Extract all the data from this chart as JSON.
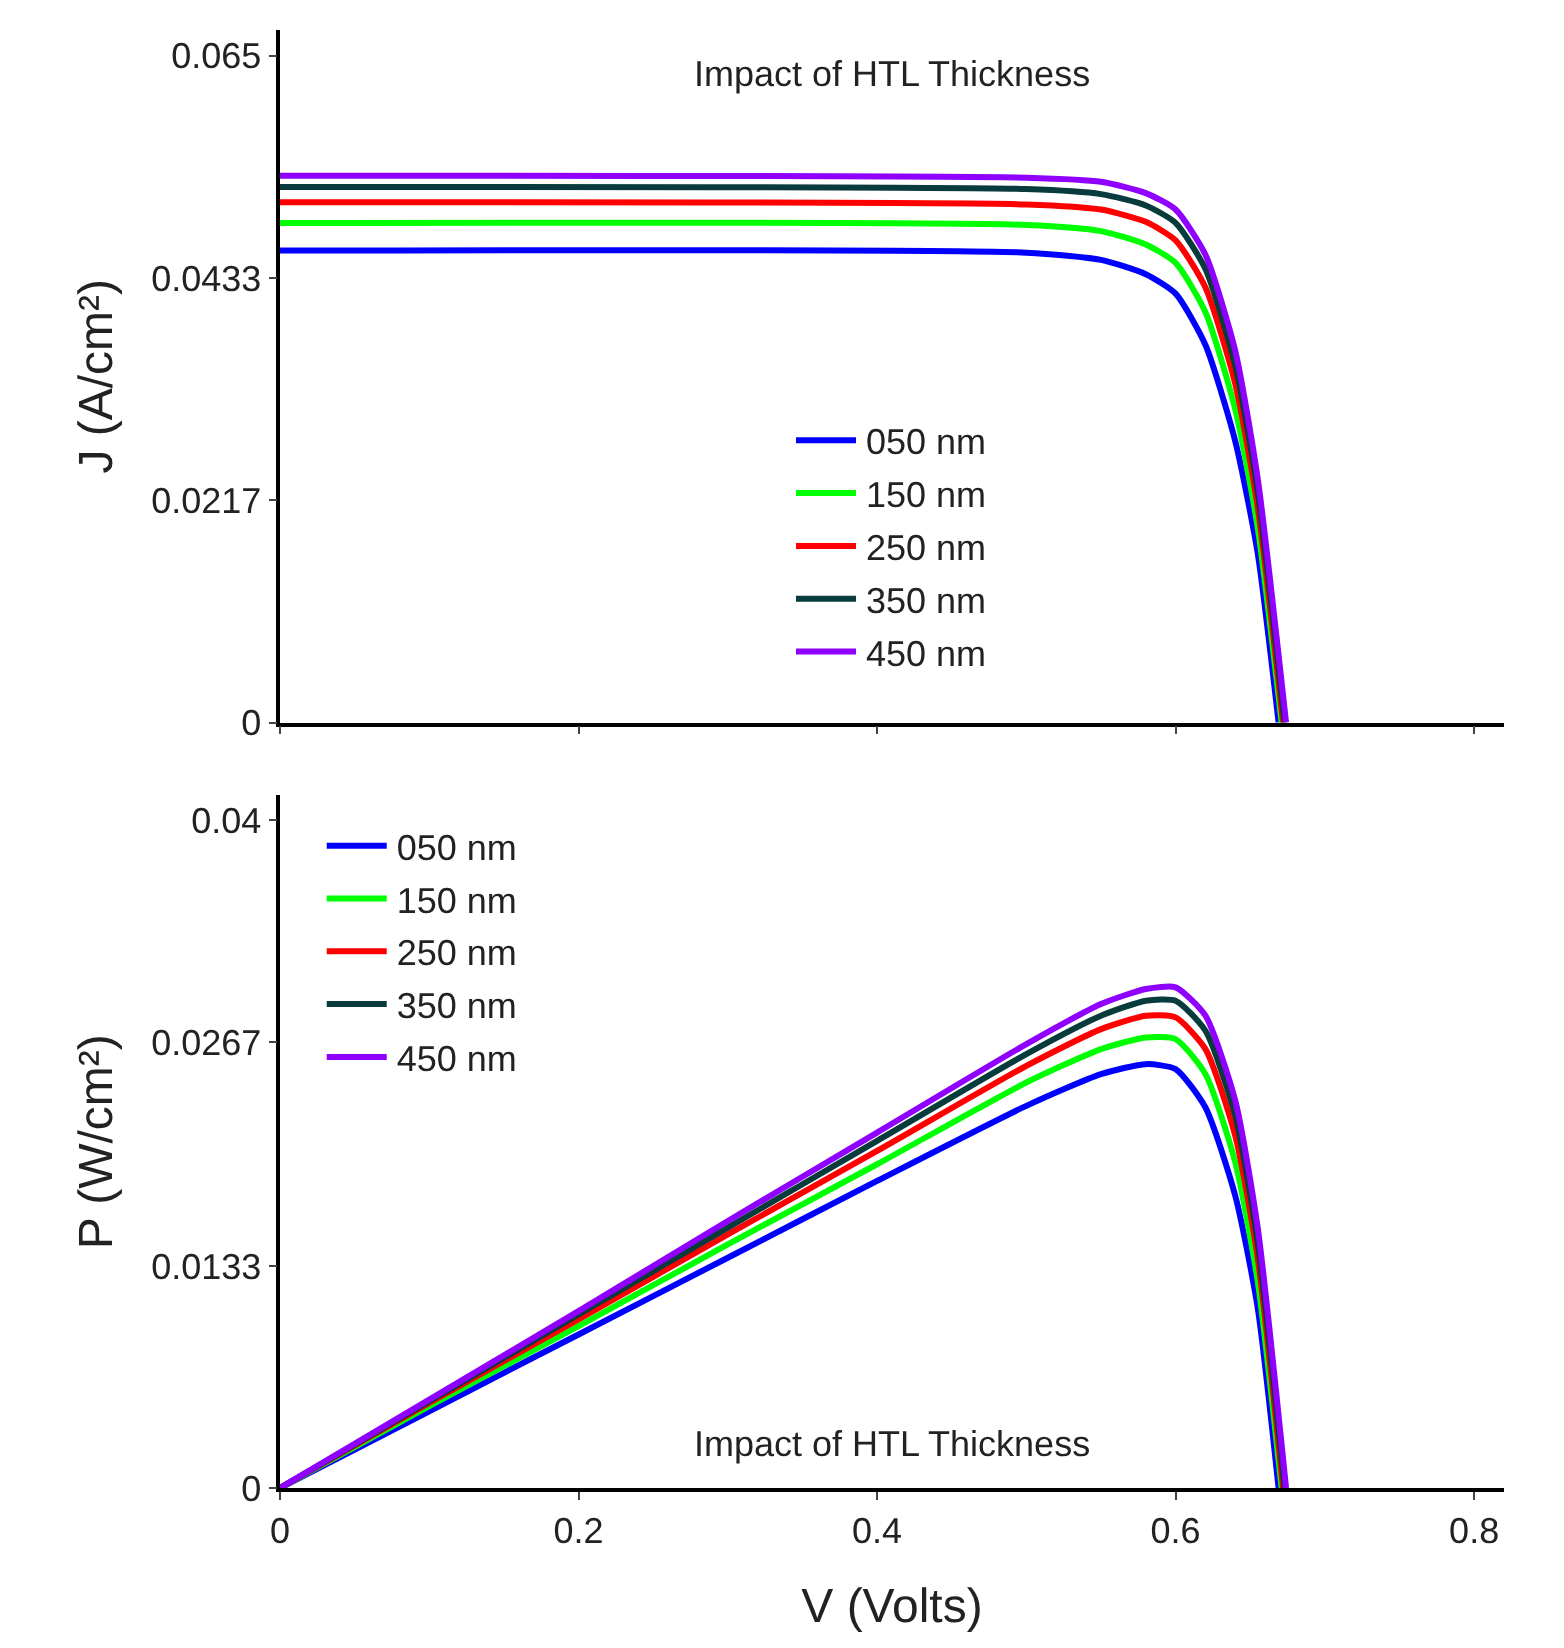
{
  "chart_data": [
    {
      "type": "line",
      "title": "Impact of HTL Thickness",
      "ylabel": "J (A/cm²)",
      "xlim": [
        0,
        0.82
      ],
      "xticks": [
        {
          "value": 0,
          "label": null
        },
        {
          "value": 0.2,
          "label": null
        },
        {
          "value": 0.4,
          "label": null
        },
        {
          "value": 0.6,
          "label": null
        },
        {
          "value": 0.8,
          "label": null
        }
      ],
      "ylim": [
        0,
        0.0675
      ],
      "yticks": [
        0,
        0.0217,
        0.0433,
        0.065
      ],
      "tick_labels": "y",
      "legend": "bottom",
      "marker": "none",
      "line_style": "solid",
      "series": [
        {
          "name": "050 nm",
          "color": "#0000ff",
          "x": [
            0,
            0.5,
            0.55,
            0.58,
            0.6,
            0.62,
            0.64,
            0.655,
            0.669
          ],
          "values": [
            0.046,
            0.0458,
            0.0451,
            0.0437,
            0.0418,
            0.0368,
            0.0274,
            0.0165,
            0
          ]
        },
        {
          "name": "150 nm",
          "color": "#00ff00",
          "x": [
            0,
            0.5,
            0.55,
            0.58,
            0.6,
            0.62,
            0.64,
            0.655,
            0.671
          ],
          "values": [
            0.0487,
            0.0485,
            0.0479,
            0.0466,
            0.0448,
            0.04,
            0.0305,
            0.019,
            0
          ]
        },
        {
          "name": "250 nm",
          "color": "#ff0000",
          "x": [
            0,
            0.5,
            0.55,
            0.58,
            0.6,
            0.62,
            0.64,
            0.655,
            0.672
          ],
          "values": [
            0.0507,
            0.0505,
            0.05,
            0.0488,
            0.047,
            0.0424,
            0.033,
            0.021,
            0
          ]
        },
        {
          "name": "350 nm",
          "color": "#083c3c",
          "x": [
            0,
            0.5,
            0.55,
            0.58,
            0.6,
            0.62,
            0.64,
            0.655,
            0.673
          ],
          "values": [
            0.0522,
            0.052,
            0.0515,
            0.0504,
            0.0487,
            0.0442,
            0.0348,
            0.0225,
            0
          ]
        },
        {
          "name": "450 nm",
          "color": "#8f00ff",
          "x": [
            0,
            0.5,
            0.55,
            0.58,
            0.6,
            0.62,
            0.64,
            0.655,
            0.674
          ],
          "values": [
            0.0533,
            0.0531,
            0.0527,
            0.0516,
            0.05,
            0.0456,
            0.0362,
            0.0238,
            0
          ]
        }
      ]
    },
    {
      "type": "line",
      "title": "Impact of HTL Thickness",
      "xlabel": "V (Volts)",
      "ylabel": "P (W/cm²)",
      "xlim": [
        0,
        0.82
      ],
      "xticks": [
        0,
        0.2,
        0.4,
        0.6,
        0.8
      ],
      "ylim": [
        0,
        0.0415
      ],
      "yticks": [
        0,
        0.0133,
        0.0267,
        0.04
      ],
      "legend": "top left",
      "marker": "none",
      "line_style": "solid",
      "series": [
        {
          "name": "050 nm",
          "color": "#0000ff",
          "x": [
            0,
            0.1,
            0.2,
            0.3,
            0.4,
            0.5,
            0.55,
            0.58,
            0.6,
            0.62,
            0.64,
            0.655,
            0.669
          ],
          "values": [
            0,
            0.0046,
            0.0092,
            0.0138,
            0.0184,
            0.0229,
            0.0248,
            0.0254,
            0.0251,
            0.0228,
            0.0175,
            0.0108,
            0
          ]
        },
        {
          "name": "150 nm",
          "color": "#00ff00",
          "x": [
            0,
            0.1,
            0.2,
            0.3,
            0.4,
            0.5,
            0.55,
            0.58,
            0.6,
            0.62,
            0.64,
            0.655,
            0.671
          ],
          "values": [
            0,
            0.0049,
            0.0097,
            0.0146,
            0.0194,
            0.0243,
            0.0263,
            0.027,
            0.0269,
            0.0248,
            0.0195,
            0.0124,
            0
          ]
        },
        {
          "name": "250 nm",
          "color": "#ff0000",
          "x": [
            0,
            0.1,
            0.2,
            0.3,
            0.4,
            0.5,
            0.55,
            0.58,
            0.6,
            0.62,
            0.64,
            0.655,
            0.672
          ],
          "values": [
            0,
            0.0051,
            0.0101,
            0.0152,
            0.0202,
            0.0253,
            0.0275,
            0.0283,
            0.0282,
            0.0263,
            0.0211,
            0.0138,
            0
          ]
        },
        {
          "name": "350 nm",
          "color": "#083c3c",
          "x": [
            0,
            0.1,
            0.2,
            0.3,
            0.4,
            0.5,
            0.55,
            0.58,
            0.6,
            0.62,
            0.64,
            0.655,
            0.673
          ],
          "values": [
            0,
            0.0052,
            0.0104,
            0.0156,
            0.0208,
            0.026,
            0.0283,
            0.0292,
            0.0292,
            0.0274,
            0.0223,
            0.0147,
            0
          ]
        },
        {
          "name": "450 nm",
          "color": "#8f00ff",
          "x": [
            0,
            0.1,
            0.2,
            0.3,
            0.4,
            0.5,
            0.55,
            0.58,
            0.6,
            0.62,
            0.64,
            0.655,
            0.674
          ],
          "values": [
            0,
            0.0053,
            0.0106,
            0.016,
            0.0213,
            0.0266,
            0.029,
            0.0299,
            0.03,
            0.0283,
            0.0232,
            0.0156,
            0
          ]
        }
      ]
    }
  ]
}
